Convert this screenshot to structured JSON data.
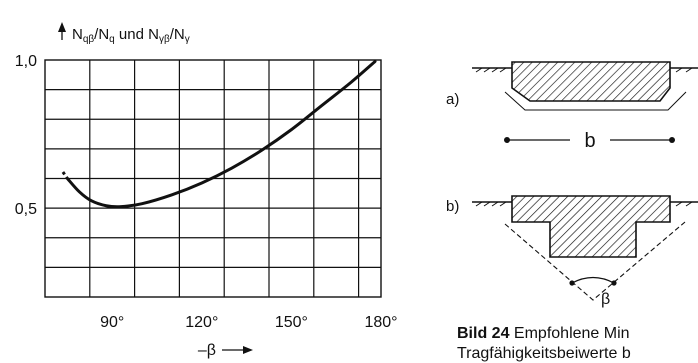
{
  "chart_data": {
    "type": "line",
    "ylabel_parts": {
      "n1": "N",
      "s1": "qβ",
      "d1": "/N",
      "s2": "q",
      "mid": " und N",
      "s3": "γβ",
      "d2": "/N",
      "s4": "γ"
    },
    "xlabel": "–β",
    "x_ticks": [
      "90°",
      "120°",
      "150°",
      "180°"
    ],
    "y_ticks": [
      "1,0",
      "0,5"
    ],
    "xlim": [
      67.5,
      180
    ],
    "ylim": [
      0.2,
      1.0
    ],
    "x_tick_values": [
      90,
      120,
      150,
      180
    ],
    "y_tick_values": [
      1.0,
      0.5
    ],
    "grid": true,
    "series": [
      {
        "points": [
          [
            75,
            0.6
          ],
          [
            79,
            0.555
          ],
          [
            83,
            0.525
          ],
          [
            88,
            0.508
          ],
          [
            93,
            0.505
          ],
          [
            100,
            0.515
          ],
          [
            110,
            0.545
          ],
          [
            120,
            0.585
          ],
          [
            130,
            0.635
          ],
          [
            140,
            0.695
          ],
          [
            150,
            0.765
          ],
          [
            160,
            0.845
          ],
          [
            170,
            0.925
          ],
          [
            178,
            0.995
          ]
        ],
        "dashed_start": [
          [
            73.5,
            0.622
          ],
          [
            75,
            0.6
          ]
        ]
      }
    ]
  },
  "figure": {
    "label_a": "a)",
    "label_b": "b)",
    "dim_label": "b",
    "angle_label": "β"
  },
  "caption": {
    "bold": "Bild 24",
    "line1": "Empfohlene Min",
    "line2": "Tragfähigkeitsbeiwerte b"
  }
}
